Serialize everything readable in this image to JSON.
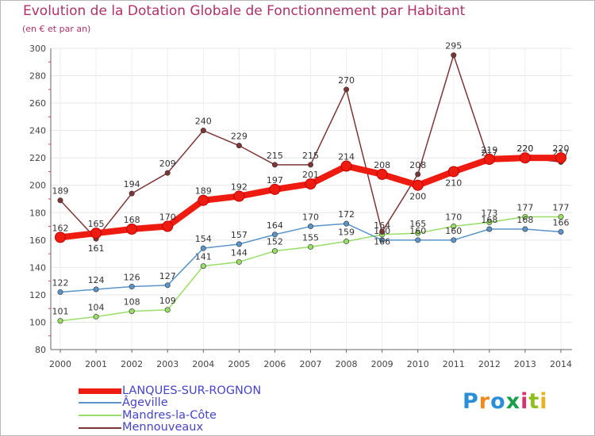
{
  "title": "Evolution de la Dotation Globale de Fonctionnement par Habitant",
  "subtitle": "(en € et par an)",
  "logo": {
    "text": "Proxiti",
    "colors": [
      "#2a8fd6",
      "#f08a1c",
      "#2a8fd6",
      "#1aa04a",
      "#d6336c",
      "#8fbf1f",
      "#e9b21b"
    ]
  },
  "chart_data": {
    "type": "line",
    "title": "Evolution de la Dotation Globale de Fonctionnement par Habitant",
    "subtitle": "(en € et par an)",
    "xlabel": "",
    "ylabel": "",
    "x": [
      "2000",
      "2001",
      "2002",
      "2003",
      "2004",
      "2005",
      "2006",
      "2007",
      "2008",
      "2009",
      "2010",
      "2011",
      "2012",
      "2013",
      "2014"
    ],
    "yticks": [
      "80",
      "100",
      "120",
      "140",
      "160",
      "180",
      "200",
      "220",
      "240",
      "260",
      "280",
      "300"
    ],
    "ylim": [
      80,
      300
    ],
    "grid": true,
    "legend_position": "bottom-left",
    "series": [
      {
        "name": "LANQUES-SUR-ROGNON",
        "color": "#ee1c10",
        "values": [
          162,
          165,
          168,
          170,
          189,
          192,
          197,
          201,
          214,
          208,
          200,
          210,
          219,
          220,
          220
        ],
        "labels": [
          "162",
          "165",
          "168",
          "170",
          "189",
          "192",
          "197",
          "201",
          "214",
          "208",
          "200",
          "210",
          "219",
          "220",
          "220"
        ]
      },
      {
        "name": "Âgeville",
        "color": "#5b94c8",
        "values": [
          122,
          124,
          126,
          127,
          154,
          157,
          164,
          170,
          172,
          160,
          160,
          160,
          168,
          168,
          166
        ],
        "labels": [
          "122",
          "124",
          "126",
          "127",
          "154",
          "157",
          "164",
          "170",
          "172",
          "160",
          "160",
          "160",
          "168",
          "168",
          "166"
        ]
      },
      {
        "name": "Mandres-la-Côte",
        "color": "#99dd66",
        "values": [
          101,
          104,
          108,
          109,
          141,
          144,
          152,
          155,
          159,
          164,
          165,
          170,
          173,
          177,
          177
        ],
        "labels": [
          "101",
          "104",
          "108",
          "109",
          "141",
          "144",
          "152",
          "155",
          "159",
          "164",
          "165",
          "170",
          "173",
          "177",
          "177"
        ]
      },
      {
        "name": "Mennouveaux",
        "color": "#7d3535",
        "values": [
          189,
          161,
          194,
          209,
          240,
          229,
          215,
          215,
          270,
          166,
          208,
          295,
          217,
          220,
          217
        ],
        "labels": [
          "189",
          "161",
          "194",
          "209",
          "240",
          "229",
          "215",
          "215",
          "270",
          "166",
          "208",
          "295",
          "217",
          "220",
          "217"
        ]
      }
    ]
  }
}
